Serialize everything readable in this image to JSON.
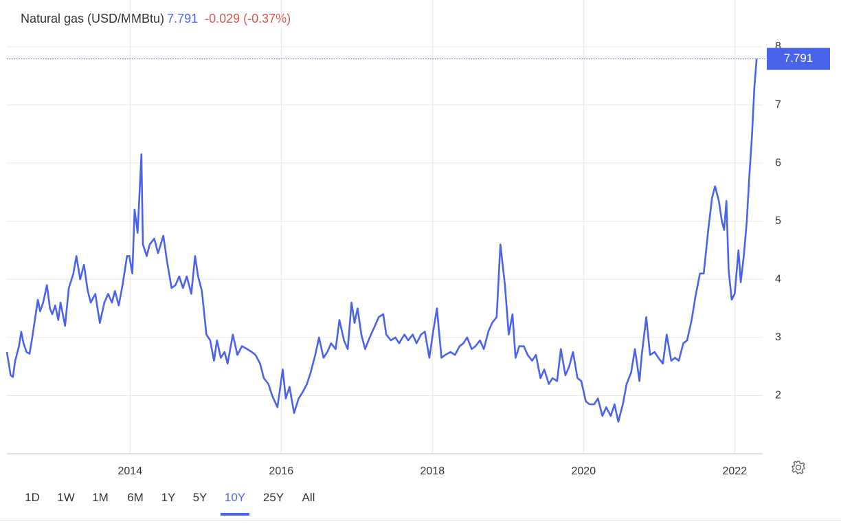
{
  "header": {
    "title": "Natural gas (USD/MMBtu)",
    "change": "-0.029 (-0.37%)"
  },
  "range_selector": {
    "options": [
      "1D",
      "1W",
      "1M",
      "6M",
      "1Y",
      "5Y",
      "10Y",
      "25Y",
      "All"
    ],
    "selected": "10Y"
  },
  "chart_data": {
    "type": "line",
    "color": "#4a63eb",
    "x": [
      2012.37,
      2012.42,
      2012.45,
      2012.48,
      2012.53,
      2012.56,
      2012.59,
      2012.63,
      2012.67,
      2012.7,
      2012.74,
      2012.78,
      2012.81,
      2012.85,
      2012.9,
      2012.94,
      2012.97,
      2013.01,
      2013.05,
      2013.08,
      2013.14,
      2013.19,
      2013.25,
      2013.29,
      2013.34,
      2013.39,
      2013.44,
      2013.48,
      2013.54,
      2013.6,
      2013.66,
      2013.71,
      2013.76,
      2013.8,
      2013.85,
      2013.9,
      2013.96,
      2013.99,
      2014.03,
      2014.06,
      2014.1,
      2014.15,
      2014.17,
      2014.22,
      2014.26,
      2014.32,
      2014.37,
      2014.44,
      2014.49,
      2014.55,
      2014.6,
      2014.65,
      2014.7,
      2014.75,
      2014.81,
      2014.86,
      2014.9,
      2014.95,
      2015.01,
      2015.06,
      2015.11,
      2015.15,
      2015.2,
      2015.25,
      2015.29,
      2015.36,
      2015.42,
      2015.48,
      2015.55,
      2015.61,
      2015.66,
      2015.72,
      2015.77,
      2015.83,
      2015.88,
      2015.95,
      2016.02,
      2016.06,
      2016.11,
      2016.17,
      2016.23,
      2016.28,
      2016.34,
      2016.39,
      2016.45,
      2016.5,
      2016.56,
      2016.61,
      2016.66,
      2016.72,
      2016.77,
      2016.83,
      2016.88,
      2016.93,
      2016.97,
      2017.01,
      2017.06,
      2017.11,
      2017.17,
      2017.24,
      2017.29,
      2017.35,
      2017.39,
      2017.45,
      2017.51,
      2017.56,
      2017.63,
      2017.68,
      2017.74,
      2017.79,
      2017.85,
      2017.9,
      2017.96,
      2018.01,
      2018.06,
      2018.12,
      2018.17,
      2018.24,
      2018.3,
      2018.36,
      2018.41,
      2018.46,
      2018.52,
      2018.57,
      2018.63,
      2018.68,
      2018.74,
      2018.79,
      2018.85,
      2018.9,
      2018.96,
      2019.01,
      2019.06,
      2019.1,
      2019.15,
      2019.21,
      2019.26,
      2019.32,
      2019.37,
      2019.43,
      2019.48,
      2019.54,
      2019.59,
      2019.65,
      2019.7,
      2019.76,
      2019.81,
      2019.86,
      2019.92,
      2019.97,
      2020.03,
      2020.08,
      2020.14,
      2020.19,
      2020.25,
      2020.3,
      2020.36,
      2020.41,
      2020.46,
      2020.52,
      2020.57,
      2020.63,
      2020.68,
      2020.74,
      2020.77,
      2020.83,
      2020.88,
      2020.94,
      2020.99,
      2021.05,
      2021.1,
      2021.16,
      2021.21,
      2021.26,
      2021.32,
      2021.37,
      2021.43,
      2021.48,
      2021.54,
      2021.59,
      2021.65,
      2021.7,
      2021.74,
      2021.79,
      2021.83,
      2021.86,
      2021.89,
      2021.92,
      2021.96,
      2022.0,
      2022.05,
      2022.08,
      2022.12,
      2022.16,
      2022.19,
      2022.23,
      2022.26,
      2022.29
    ],
    "values": [
      2.75,
      2.35,
      2.32,
      2.6,
      2.85,
      3.1,
      2.9,
      2.75,
      2.72,
      2.95,
      3.3,
      3.65,
      3.45,
      3.6,
      3.9,
      3.5,
      3.4,
      3.55,
      3.3,
      3.6,
      3.2,
      3.85,
      4.1,
      4.4,
      4.0,
      4.25,
      3.8,
      3.6,
      3.75,
      3.25,
      3.6,
      3.75,
      3.6,
      3.8,
      3.55,
      3.9,
      4.4,
      4.4,
      4.1,
      5.2,
      4.8,
      6.15,
      4.6,
      4.4,
      4.6,
      4.7,
      4.45,
      4.75,
      4.3,
      3.85,
      3.9,
      4.05,
      3.85,
      4.05,
      3.75,
      4.4,
      4.05,
      3.8,
      3.05,
      2.95,
      2.6,
      2.95,
      2.65,
      2.75,
      2.55,
      3.05,
      2.7,
      2.85,
      2.8,
      2.75,
      2.7,
      2.55,
      2.3,
      2.2,
      2.0,
      1.8,
      2.45,
      1.95,
      2.15,
      1.7,
      1.95,
      2.05,
      2.2,
      2.4,
      2.7,
      3.0,
      2.65,
      2.75,
      2.9,
      2.8,
      3.3,
      2.95,
      2.8,
      3.6,
      3.25,
      3.5,
      3.05,
      2.8,
      3.0,
      3.2,
      3.35,
      3.4,
      3.05,
      2.95,
      3.0,
      2.9,
      3.05,
      2.95,
      3.05,
      2.9,
      3.05,
      3.1,
      2.65,
      3.1,
      3.5,
      2.65,
      2.7,
      2.75,
      2.7,
      2.85,
      2.9,
      3.0,
      2.8,
      2.85,
      2.95,
      2.8,
      3.1,
      3.25,
      3.35,
      4.6,
      3.9,
      3.05,
      3.4,
      2.65,
      2.85,
      2.85,
      2.7,
      2.6,
      2.7,
      2.3,
      2.45,
      2.2,
      2.3,
      2.25,
      2.8,
      2.35,
      2.5,
      2.75,
      2.3,
      2.25,
      1.9,
      1.85,
      1.85,
      1.95,
      1.65,
      1.8,
      1.65,
      1.85,
      1.55,
      1.85,
      2.2,
      2.4,
      2.8,
      2.25,
      2.7,
      3.35,
      2.7,
      2.75,
      2.65,
      2.55,
      3.05,
      2.6,
      2.65,
      2.6,
      2.9,
      2.95,
      3.3,
      3.7,
      4.1,
      4.1,
      4.85,
      5.4,
      5.6,
      5.35,
      5.0,
      4.85,
      5.35,
      4.15,
      3.65,
      3.75,
      4.5,
      3.95,
      4.4,
      5.0,
      5.7,
      6.5,
      7.3,
      7.791
    ],
    "xlim": [
      2012.37,
      2022.37
    ],
    "xticks": [
      2014,
      2016,
      2018,
      2020,
      2022
    ],
    "ylim": [
      1,
      8
    ],
    "yticks": [
      2,
      3,
      4,
      5,
      6,
      7,
      8
    ],
    "grid": true
  }
}
